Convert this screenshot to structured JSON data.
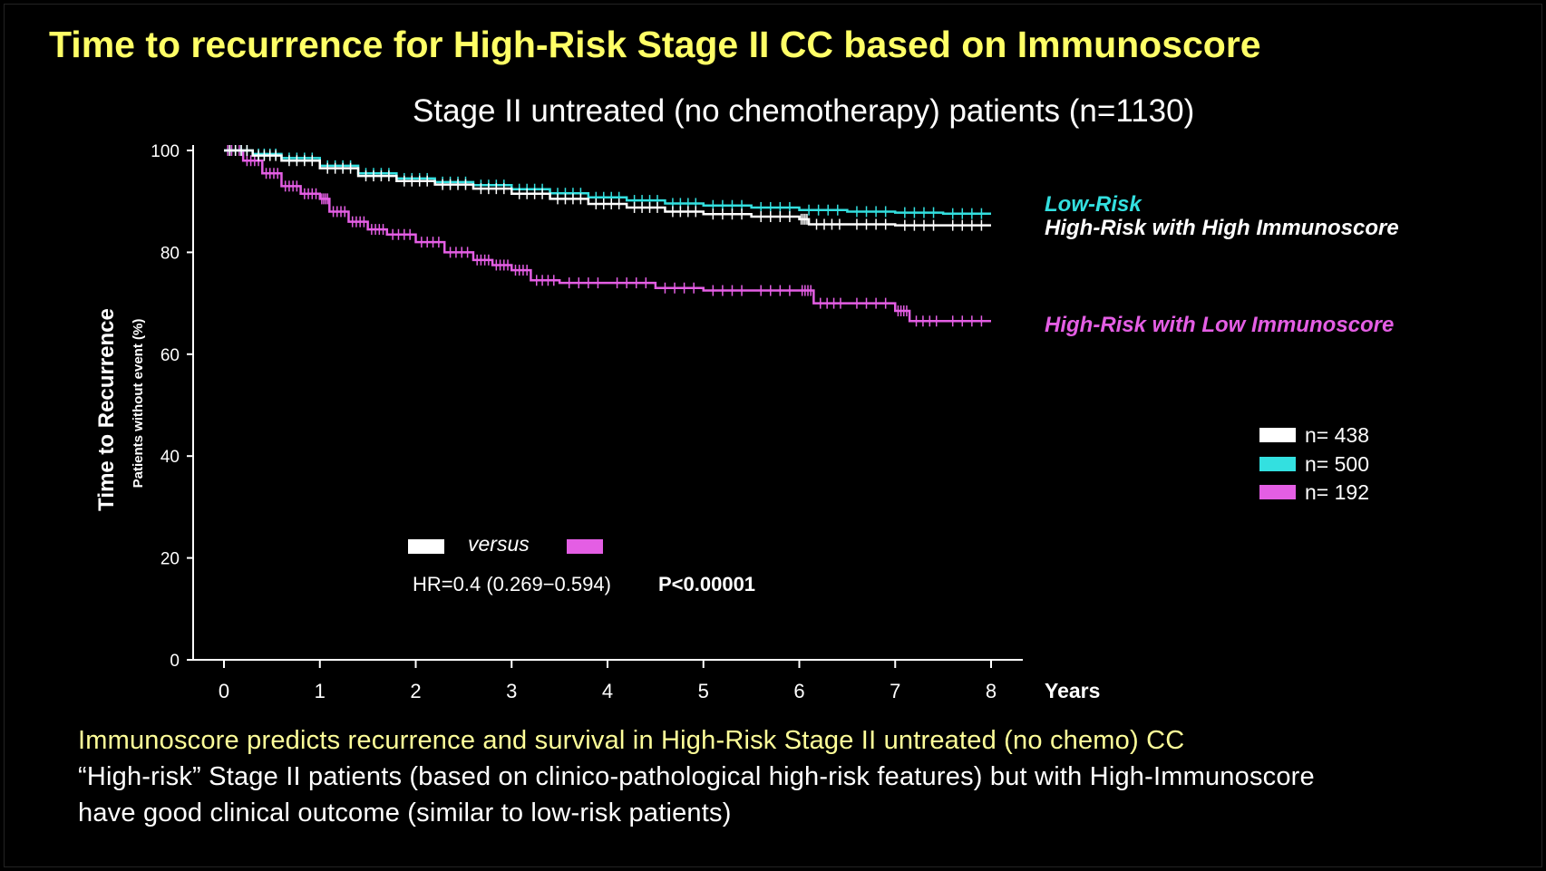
{
  "slide": {
    "title": "Time to recurrence for High-Risk Stage II CC based on Immunoscore",
    "subtitle": "Stage II untreated (no chemotherapy) patients (n=1130)",
    "footer": {
      "line1": "Immunoscore predicts recurrence and survival in High-Risk Stage II untreated (no chemo) CC",
      "line2": "“High-risk” Stage II patients (based on clinico-pathological high-risk features) but with High-Immunoscore",
      "line3": "have good clinical outcome (similar to low-risk patients)"
    }
  },
  "colors": {
    "background": "#000000",
    "title": "#ffff66",
    "white_series": "#ffffff",
    "cyan_series": "#33e0e0",
    "magenta_series": "#e45ee4",
    "axis": "#ffffff"
  },
  "chart_data": {
    "type": "line",
    "title": "Stage II untreated (no chemotherapy) patients (n=1130)",
    "ylabel": "Time to Recurrence",
    "ylabel2": "Patients without event (%)",
    "xlabel": "Years",
    "xlim": [
      0,
      8
    ],
    "ylim": [
      0,
      100
    ],
    "x_ticks": [
      0,
      1,
      2,
      3,
      4,
      5,
      6,
      7,
      8
    ],
    "y_ticks": [
      0,
      20,
      40,
      60,
      80,
      100
    ],
    "series": [
      {
        "name": "High-Risk with High Immunoscore",
        "color": "#ffffff",
        "n_label": "n= 438",
        "x": [
          0,
          0.3,
          0.6,
          1.0,
          1.4,
          1.8,
          2.2,
          2.6,
          3.0,
          3.4,
          3.8,
          4.2,
          4.6,
          5.0,
          5.5,
          6.0,
          6.1,
          6.5,
          7.0,
          7.5,
          8.0
        ],
        "y": [
          100,
          99,
          98,
          96.5,
          95,
          94,
          93.3,
          92.5,
          91.5,
          90.5,
          89.5,
          88.8,
          88,
          87.5,
          87,
          86.5,
          85.5,
          85.5,
          85.3,
          85.3,
          85.3
        ]
      },
      {
        "name": "Low-Risk",
        "color": "#33e0e0",
        "n_label": "n= 500",
        "x": [
          0,
          0.3,
          0.6,
          1.0,
          1.4,
          1.8,
          2.2,
          2.6,
          3.0,
          3.4,
          3.8,
          4.2,
          4.6,
          5.0,
          5.5,
          6.0,
          6.5,
          7.0,
          7.5,
          8.0
        ],
        "y": [
          100,
          99.3,
          98.5,
          97,
          95.5,
          94.5,
          93.8,
          93.2,
          92.4,
          91.6,
          90.8,
          90.2,
          89.6,
          89.2,
          88.8,
          88.3,
          88,
          87.8,
          87.6,
          87.6
        ]
      },
      {
        "name": "High-Risk with Low Immunoscore",
        "color": "#e45ee4",
        "n_label": "n= 192",
        "x": [
          0,
          0.2,
          0.4,
          0.6,
          0.8,
          1.0,
          1.1,
          1.3,
          1.5,
          1.7,
          2.0,
          2.3,
          2.6,
          2.8,
          3.0,
          3.2,
          3.5,
          4.0,
          4.5,
          5.0,
          5.5,
          6.0,
          6.15,
          6.5,
          7.0,
          7.15,
          7.5,
          8.0
        ],
        "y": [
          100,
          98,
          95.5,
          93,
          91.5,
          90.5,
          88,
          86,
          84.5,
          83.5,
          82,
          80,
          78.5,
          77.5,
          76.5,
          74.5,
          74,
          74,
          73,
          72.5,
          72.5,
          72.5,
          70,
          70,
          68.5,
          66.5,
          66.5,
          66.5
        ]
      }
    ],
    "curve_labels": [
      {
        "text": "Low-Risk",
        "color": "#33e0e0"
      },
      {
        "text": "High-Risk with High Immunoscore",
        "color": "#ffffff"
      },
      {
        "text": "High-Risk with Low Immunoscore",
        "color": "#e45ee4"
      }
    ],
    "annotation": {
      "versus": "versus",
      "hr_text": "HR=0.4 (0.269−0.594)",
      "p_text": "P<0.00001"
    }
  }
}
